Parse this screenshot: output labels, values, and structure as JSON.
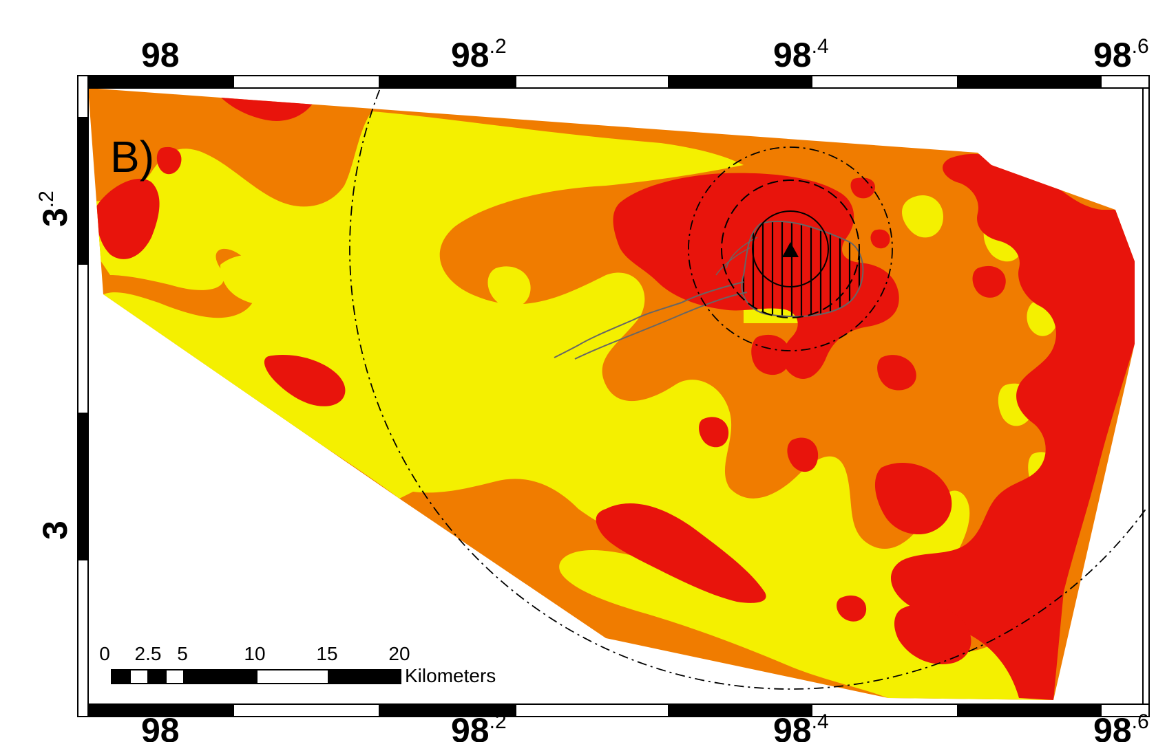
{
  "panel_label": "B)",
  "axes": {
    "longitude_ticks_top": [
      {
        "main": "98",
        "sup": ""
      },
      {
        "main": "98",
        "sup": ".2"
      },
      {
        "main": "98",
        "sup": ".4"
      },
      {
        "main": "98",
        "sup": ".6"
      }
    ],
    "longitude_ticks_bottom": [
      {
        "main": "98",
        "sup": ""
      },
      {
        "main": "98",
        "sup": ".2"
      },
      {
        "main": "98",
        "sup": ".4"
      },
      {
        "main": "98",
        "sup": ".6"
      }
    ],
    "latitude_ticks_left": [
      {
        "main": "3",
        "sup": ".2"
      },
      {
        "main": "3",
        "sup": ""
      }
    ]
  },
  "scale_bar": {
    "tick_labels": [
      "0",
      "2.5",
      "5",
      "10",
      "15",
      "20"
    ],
    "unit": "Kilometers"
  },
  "colors": {
    "high": "#e8140c",
    "medium": "#f07c00",
    "low": "#f4f000",
    "hatch": "#000000",
    "footprint_outline": "#666666",
    "frame": "#000000"
  },
  "map_symbols": {
    "summit_marker": "black-triangle-icon",
    "distance_rings": "dashed-concentric-circles",
    "zone_hatching": "vertical-line-hatch"
  }
}
